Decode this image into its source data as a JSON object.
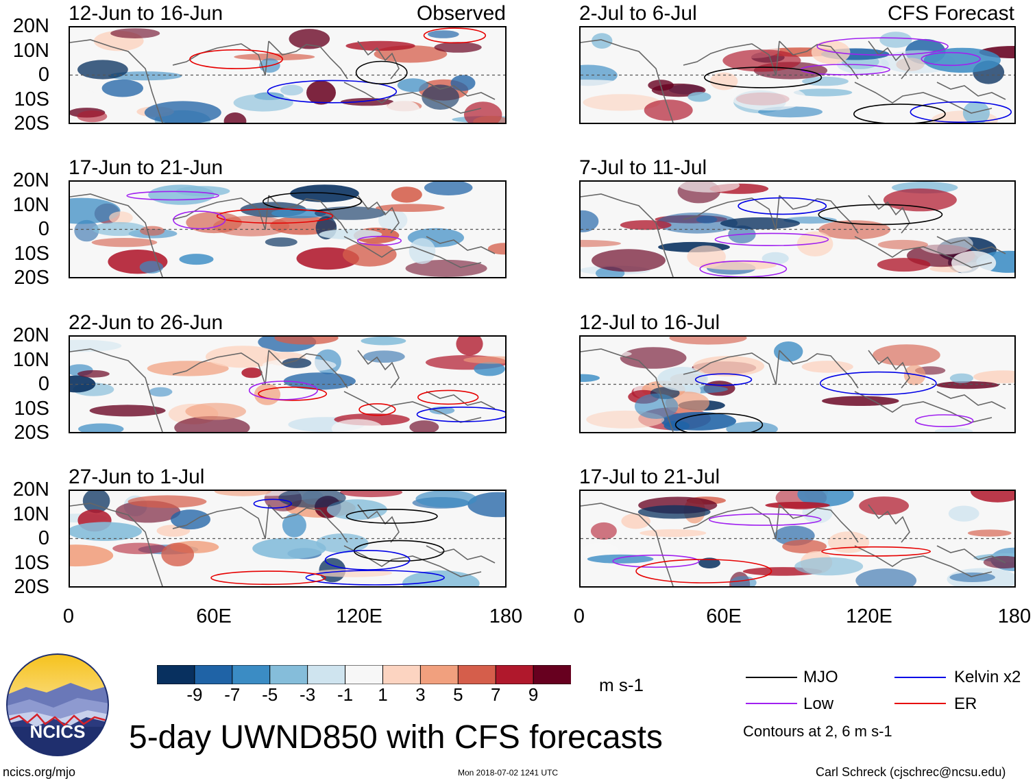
{
  "headers": {
    "left": "Observed",
    "right": "CFS Forecast"
  },
  "panels": [
    {
      "title": "12-Jun to 16-Jun",
      "column": "observed",
      "row": 0
    },
    {
      "title": "17-Jun to 21-Jun",
      "column": "observed",
      "row": 1
    },
    {
      "title": "22-Jun to 26-Jun",
      "column": "observed",
      "row": 2
    },
    {
      "title": "27-Jun to 1-Jul",
      "column": "observed",
      "row": 3
    },
    {
      "title": "2-Jul to 6-Jul",
      "column": "forecast",
      "row": 0
    },
    {
      "title": "7-Jul to 11-Jul",
      "column": "forecast",
      "row": 1
    },
    {
      "title": "12-Jul to 16-Jul",
      "column": "forecast",
      "row": 2
    },
    {
      "title": "17-Jul to 21-Jul",
      "column": "forecast",
      "row": 3
    }
  ],
  "lat_labels": [
    "20N",
    "10N",
    "0",
    "10S",
    "20S"
  ],
  "lon_labels": [
    "0",
    "60E",
    "120E",
    "180"
  ],
  "colorbar": {
    "labels": [
      "-9",
      "-7",
      "-5",
      "-3",
      "-1",
      "1",
      "3",
      "5",
      "7",
      "9"
    ],
    "colors": [
      "#08305f",
      "#1f63a6",
      "#3b8cc4",
      "#85bdda",
      "#cfe4ef",
      "#f7f7f7",
      "#fcd4c1",
      "#f1a07e",
      "#d55e4b",
      "#b0182c",
      "#67001f"
    ],
    "units": "m s-1"
  },
  "legend": {
    "items": [
      {
        "label": "MJO",
        "color": "#000000"
      },
      {
        "label": "Kelvin x2",
        "color": "#0000e6"
      },
      {
        "label": "Low",
        "color": "#a020f0"
      },
      {
        "label": "ER",
        "color": "#e60000"
      }
    ],
    "note": "Contours at 2, 6 m s-1"
  },
  "logo": {
    "text": "NCICS"
  },
  "main_title": "5-day UWND850 with CFS forecasts",
  "footer": {
    "left": "ncics.org/mjo",
    "center": "Mon 2018-07-02 1241 UTC",
    "right": "Carl Schreck (cjschrec@ncsu.edu)"
  }
}
